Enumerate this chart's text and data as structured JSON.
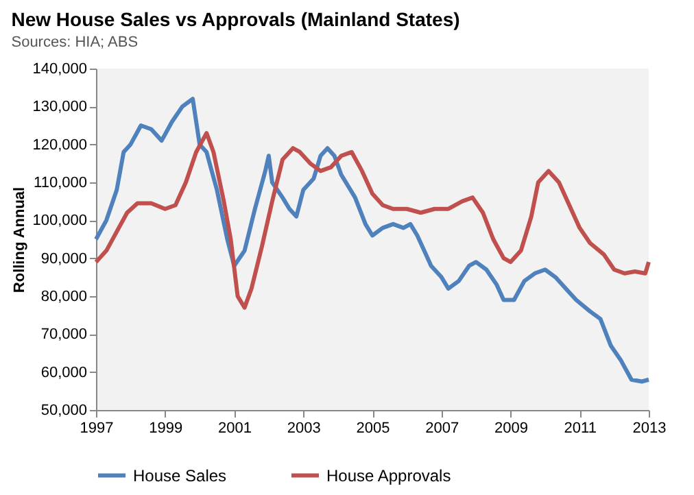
{
  "chart_data": {
    "type": "line",
    "title": "New House Sales vs Approvals (Mainland States)",
    "subtitle": "Sources: HIA; ABS",
    "ylabel": "Rolling Annual",
    "xlim": [
      1997,
      2013
    ],
    "xticks": [
      1997,
      1999,
      2001,
      2003,
      2005,
      2007,
      2009,
      2011,
      2013
    ],
    "ylim": [
      50000,
      140000
    ],
    "yticks": [
      {
        "value": 50000,
        "label": "50,000"
      },
      {
        "value": 60000,
        "label": "60,000"
      },
      {
        "value": 70000,
        "label": "70,000"
      },
      {
        "value": 80000,
        "label": "80,000"
      },
      {
        "value": 90000,
        "label": "90,000"
      },
      {
        "value": 100000,
        "label": "100,000"
      },
      {
        "value": 110000,
        "label": "110,000"
      },
      {
        "value": 120000,
        "label": "120,000"
      },
      {
        "value": 130000,
        "label": "130,000"
      },
      {
        "value": 140000,
        "label": "140,000"
      }
    ],
    "grid": false,
    "legend": "bottom",
    "marker": "none",
    "line_style": "solid",
    "series": [
      {
        "name": "House Sales",
        "color": "#4f81bd",
        "x": [
          1997,
          1997.3,
          1997.6,
          1997.8,
          1998,
          1998.3,
          1998.6,
          1998.9,
          1999.2,
          1999.5,
          1999.8,
          2000,
          2000.2,
          2000.5,
          2000.8,
          2001,
          2001.3,
          2001.6,
          2001.9,
          2002,
          2002.1,
          2002.4,
          2002.6,
          2002.8,
          2003,
          2003.3,
          2003.5,
          2003.7,
          2003.9,
          2004.1,
          2004.5,
          2004.8,
          2005,
          2005.3,
          2005.6,
          2005.9,
          2006.1,
          2006.3,
          2006.5,
          2006.7,
          2007,
          2007.2,
          2007.5,
          2007.8,
          2008,
          2008.3,
          2008.6,
          2008.8,
          2009.1,
          2009.4,
          2009.7,
          2010,
          2010.3,
          2010.6,
          2010.9,
          2011.3,
          2011.6,
          2011.9,
          2012.2,
          2012.5,
          2012.8,
          2013
        ],
        "values": [
          95000,
          100000,
          108000,
          118000,
          120000,
          125000,
          124000,
          121000,
          126000,
          130000,
          132000,
          120000,
          118000,
          108000,
          95000,
          88000,
          92000,
          103000,
          113000,
          117000,
          110000,
          106000,
          103000,
          101000,
          108000,
          111000,
          117000,
          119000,
          117000,
          112000,
          106000,
          99000,
          96000,
          98000,
          99000,
          98000,
          99000,
          96000,
          92000,
          88000,
          85000,
          82000,
          84000,
          88000,
          89000,
          87000,
          83000,
          79000,
          79000,
          84000,
          86000,
          87000,
          85000,
          82000,
          79000,
          76000,
          74000,
          67000,
          63000,
          58000,
          57500,
          58000
        ]
      },
      {
        "name": "House Approvals",
        "color": "#c0504d",
        "x": [
          1997,
          1997.3,
          1997.6,
          1997.9,
          1998.2,
          1998.6,
          1999,
          1999.3,
          1999.6,
          1999.9,
          2000.2,
          2000.4,
          2000.7,
          2000.9,
          2001.1,
          2001.3,
          2001.5,
          2001.8,
          2002.1,
          2002.4,
          2002.7,
          2002.9,
          2003.2,
          2003.5,
          2003.8,
          2004.1,
          2004.4,
          2004.7,
          2005,
          2005.3,
          2005.6,
          2006,
          2006.4,
          2006.8,
          2007.2,
          2007.6,
          2007.9,
          2008.2,
          2008.5,
          2008.8,
          2009,
          2009.3,
          2009.6,
          2009.8,
          2010.1,
          2010.4,
          2010.7,
          2011,
          2011.3,
          2011.7,
          2012,
          2012.3,
          2012.6,
          2012.9,
          2013
        ],
        "values": [
          89000,
          92000,
          97000,
          102000,
          104500,
          104500,
          103000,
          104000,
          110000,
          118000,
          123000,
          118000,
          105000,
          95000,
          80000,
          77000,
          82000,
          93000,
          105000,
          116000,
          119000,
          118000,
          115000,
          113000,
          114000,
          117000,
          118000,
          113000,
          107000,
          104000,
          103000,
          103000,
          102000,
          103000,
          103000,
          105000,
          106000,
          102000,
          95000,
          90000,
          89000,
          92000,
          101000,
          110000,
          113000,
          110000,
          104000,
          98000,
          94000,
          91000,
          87000,
          86000,
          86500,
          86000,
          89000
        ]
      }
    ]
  }
}
